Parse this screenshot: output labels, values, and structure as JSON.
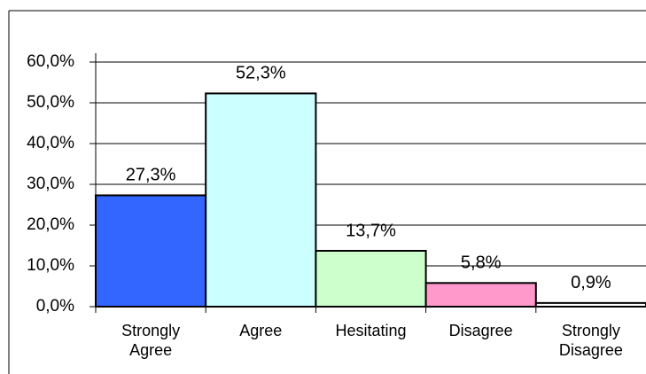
{
  "chart_data": {
    "type": "bar",
    "categories": [
      "Strongly Agree",
      "Agree",
      "Hesitating",
      "Disagree",
      "Strongly Disagree"
    ],
    "values": [
      27.3,
      52.3,
      13.7,
      5.8,
      0.9
    ],
    "value_labels": [
      "27,3%",
      "52,3%",
      "13,7%",
      "5,8%",
      "0,9%"
    ],
    "colors": [
      "#3366ff",
      "#ccffff",
      "#ccffcc",
      "#ff99cc",
      "#ffffff"
    ],
    "ylim": [
      0,
      60
    ],
    "yticks": [
      {
        "value": 0,
        "label": "0,0%"
      },
      {
        "value": 10,
        "label": "10,0%"
      },
      {
        "value": 20,
        "label": "20,0%"
      },
      {
        "value": 30,
        "label": "30,0%"
      },
      {
        "value": 40,
        "label": "40,0%"
      },
      {
        "value": 50,
        "label": "50,0%"
      },
      {
        "value": 60,
        "label": "60,0%"
      }
    ],
    "grid": true
  }
}
